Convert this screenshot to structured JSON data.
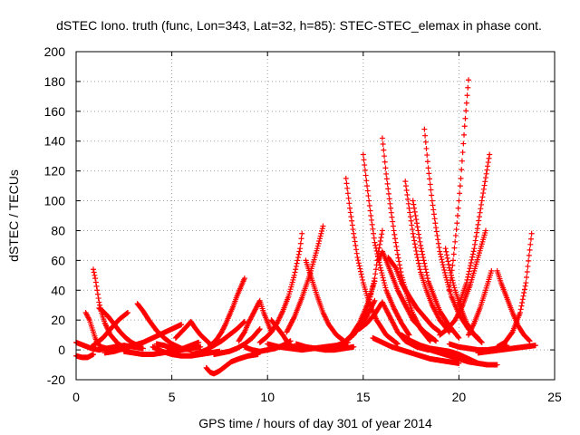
{
  "chart_data": {
    "type": "scatter",
    "title": "dSTEC Iono. truth (func, Lon=343, Lat=32, h=85): STEC-STEC_elemax in phase cont.",
    "xlabel": "GPS time / hours of day 301 of year 2014",
    "ylabel": "dSTEC  / TECUs",
    "xlim": [
      0,
      25
    ],
    "ylim": [
      -20,
      200
    ],
    "xticks": [
      0,
      5,
      10,
      15,
      20,
      25
    ],
    "yticks": [
      -20,
      0,
      20,
      40,
      60,
      80,
      100,
      120,
      140,
      160,
      180,
      200
    ],
    "grid": true,
    "marker": "+",
    "color": "#ff0000",
    "series": [
      {
        "x": [
          0.0,
          0.4,
          0.8,
          1.2,
          1.6,
          2.0,
          2.5,
          3.0,
          3.5
        ],
        "y": [
          5,
          3,
          1,
          0,
          1,
          2,
          3,
          2,
          1
        ]
      },
      {
        "x": [
          0.0,
          0.3,
          0.6,
          0.9
        ],
        "y": [
          -4,
          -5,
          -5,
          -3
        ]
      },
      {
        "x": [
          0.5,
          0.7,
          0.9,
          1.0,
          1.1,
          1.3,
          1.6,
          2.0,
          2.4,
          2.6
        ],
        "y": [
          25,
          20,
          12,
          8,
          5,
          2,
          1,
          0,
          1,
          2
        ]
      },
      {
        "x": [
          0.9,
          1.0,
          1.1,
          1.2,
          1.3,
          1.5,
          1.8,
          2.2,
          2.6
        ],
        "y": [
          54,
          48,
          40,
          32,
          26,
          18,
          10,
          4,
          1
        ]
      },
      {
        "x": [
          1.2,
          1.4,
          1.7,
          2.0,
          2.3,
          2.6,
          2.9,
          3.2
        ],
        "y": [
          28,
          26,
          22,
          17,
          12,
          8,
          5,
          3
        ]
      },
      {
        "x": [
          0.8,
          1.0,
          1.2,
          1.4,
          1.6,
          1.8,
          2.0,
          2.3,
          2.7
        ],
        "y": [
          2,
          4,
          6,
          8,
          11,
          14,
          17,
          21,
          25
        ]
      },
      {
        "x": [
          1.5,
          2.0,
          2.5,
          3.0,
          3.5,
          4.0,
          4.5,
          5.0,
          5.5
        ],
        "y": [
          -2,
          -1,
          1,
          3,
          5,
          8,
          11,
          14,
          17
        ]
      },
      {
        "x": [
          3.2,
          3.5,
          3.8,
          4.2,
          4.6,
          5.0,
          5.5,
          6.0
        ],
        "y": [
          31,
          26,
          20,
          13,
          8,
          4,
          1,
          0
        ]
      },
      {
        "x": [
          2.5,
          3.0,
          3.5,
          4.0,
          4.5,
          5.0,
          5.5,
          6.0,
          6.5
        ],
        "y": [
          -1,
          -2,
          -3,
          -3,
          -2,
          -1,
          0,
          1,
          2
        ]
      },
      {
        "x": [
          4.2,
          4.6,
          5.0,
          5.3,
          5.6,
          6.0,
          6.4
        ],
        "y": [
          4,
          3,
          1,
          0,
          1,
          3,
          5
        ]
      },
      {
        "x": [
          5.2,
          5.5,
          5.8,
          6.0,
          6.2,
          6.5,
          7.0
        ],
        "y": [
          8,
          12,
          16,
          19,
          15,
          10,
          4
        ]
      },
      {
        "x": [
          4.0,
          4.5,
          5.0,
          5.5,
          6.0,
          6.5,
          7.0,
          7.5
        ],
        "y": [
          2,
          -1,
          -3,
          -4,
          -4,
          -3,
          -2,
          -1
        ]
      },
      {
        "x": [
          6.0,
          6.4,
          6.8,
          7.2,
          7.6,
          8.0,
          8.4,
          8.8
        ],
        "y": [
          -3,
          -2,
          0,
          3,
          6,
          10,
          14,
          19
        ]
      },
      {
        "x": [
          7.0,
          7.2,
          7.4,
          7.6,
          7.8,
          8.0,
          8.2,
          8.4,
          8.6,
          8.8
        ],
        "y": [
          3,
          5,
          8,
          12,
          17,
          23,
          29,
          36,
          42,
          48
        ]
      },
      {
        "x": [
          6.8,
          7.0,
          7.2,
          7.5,
          7.8,
          8.1,
          8.5,
          9.0,
          9.5
        ],
        "y": [
          -12,
          -15,
          -16,
          -14,
          -11,
          -8,
          -6,
          -4,
          -3
        ]
      },
      {
        "x": [
          7.2,
          7.6,
          8.0,
          8.4,
          8.8,
          9.2,
          9.6
        ],
        "y": [
          -3,
          -2,
          -1,
          1,
          4,
          8,
          14
        ]
      },
      {
        "x": [
          8.5,
          8.8,
          9.0,
          9.2,
          9.4,
          9.6,
          9.8,
          10.2
        ],
        "y": [
          6,
          12,
          18,
          23,
          28,
          33,
          25,
          12
        ]
      },
      {
        "x": [
          8.8,
          9.2,
          9.6,
          10.0,
          10.4,
          10.8,
          11.2
        ],
        "y": [
          2,
          0,
          -1,
          0,
          1,
          3,
          6
        ]
      },
      {
        "x": [
          9.6,
          9.9,
          10.2,
          10.5,
          10.8,
          11.1,
          11.4,
          11.7,
          11.8
        ],
        "y": [
          5,
          8,
          12,
          18,
          26,
          36,
          50,
          68,
          78
        ]
      },
      {
        "x": [
          10.2,
          10.5,
          10.8,
          11.0,
          11.2,
          11.5,
          11.8
        ],
        "y": [
          20,
          15,
          10,
          6,
          3,
          1,
          0
        ]
      },
      {
        "x": [
          10.0,
          10.6,
          11.2,
          11.8,
          12.4,
          13.0,
          13.6,
          14.2
        ],
        "y": [
          4,
          2,
          1,
          0,
          1,
          2,
          3,
          5
        ]
      },
      {
        "x": [
          11.0,
          11.4,
          11.8,
          12.2,
          12.6,
          12.9
        ],
        "y": [
          12,
          22,
          35,
          50,
          68,
          83
        ]
      },
      {
        "x": [
          12.0,
          12.3,
          12.6,
          12.9,
          13.2,
          13.6,
          14.0
        ],
        "y": [
          60,
          48,
          36,
          25,
          17,
          10,
          6
        ]
      },
      {
        "x": [
          11.5,
          12.0,
          12.5,
          13.0,
          13.5,
          14.0,
          14.5
        ],
        "y": [
          4,
          2,
          1,
          0,
          0,
          1,
          2
        ]
      },
      {
        "x": [
          13.0,
          13.5,
          14.0,
          14.4,
          14.8,
          15.2,
          15.6
        ],
        "y": [
          0,
          2,
          5,
          9,
          15,
          23,
          33
        ]
      },
      {
        "x": [
          14.1,
          14.3,
          14.5,
          14.7,
          15.0,
          15.3,
          15.7,
          16.2,
          16.8
        ],
        "y": [
          115,
          95,
          78,
          62,
          45,
          32,
          20,
          10,
          4
        ]
      },
      {
        "x": [
          13.5,
          14.0,
          14.4,
          14.8,
          15.2,
          15.6
        ],
        "y": [
          2,
          5,
          10,
          18,
          30,
          46
        ]
      },
      {
        "x": [
          14.5,
          15.0,
          15.3,
          15.6,
          15.8,
          16.0
        ],
        "y": [
          10,
          20,
          32,
          48,
          66,
          80
        ]
      },
      {
        "x": [
          15.0,
          15.2,
          15.4,
          15.6,
          15.9,
          16.2,
          16.6,
          17.0,
          17.4
        ],
        "y": [
          131,
          110,
          90,
          72,
          55,
          40,
          28,
          18,
          10
        ]
      },
      {
        "x": [
          14.8,
          15.2,
          15.6,
          16.0,
          16.4,
          16.8,
          17.2,
          17.8,
          18.4
        ],
        "y": [
          14,
          18,
          24,
          32,
          22,
          12,
          6,
          2,
          0
        ]
      },
      {
        "x": [
          16.0,
          16.2,
          16.4,
          16.6,
          16.8,
          17.0,
          17.3,
          17.6,
          18.0,
          18.5
        ],
        "y": [
          142,
          118,
          98,
          80,
          64,
          50,
          36,
          24,
          14,
          6
        ]
      },
      {
        "x": [
          15.8,
          16.0,
          16.2,
          16.5,
          16.8,
          17.2,
          17.6,
          18.2,
          18.8
        ],
        "y": [
          60,
          66,
          60,
          50,
          40,
          30,
          20,
          12,
          6
        ]
      },
      {
        "x": [
          15.5,
          16.0,
          16.5,
          17.0,
          17.5,
          18.0,
          18.5,
          19.0,
          19.5,
          20.0
        ],
        "y": [
          8,
          5,
          2,
          0,
          -2,
          -4,
          -6,
          -7,
          -8,
          -9
        ]
      },
      {
        "x": [
          16.3,
          16.7,
          17.0,
          17.4,
          17.8,
          18.2,
          18.6,
          19.0
        ],
        "y": [
          62,
          55,
          45,
          36,
          28,
          22,
          16,
          12
        ]
      },
      {
        "x": [
          17.2,
          17.4,
          17.6,
          17.8,
          18.0,
          18.3,
          18.6,
          19.0,
          19.5
        ],
        "y": [
          113,
          95,
          78,
          64,
          52,
          40,
          30,
          20,
          12
        ]
      },
      {
        "x": [
          17.6,
          17.8,
          18.0,
          18.2,
          18.4,
          18.7,
          19.0,
          19.5,
          20.0
        ],
        "y": [
          100,
          85,
          70,
          58,
          46,
          36,
          26,
          16,
          8
        ]
      },
      {
        "x": [
          18.2,
          18.4,
          18.6,
          18.8,
          19.0,
          19.3,
          19.6,
          20.0,
          20.5,
          21.0
        ],
        "y": [
          148,
          122,
          100,
          82,
          66,
          50,
          36,
          24,
          14,
          8
        ]
      },
      {
        "x": [
          17.0,
          17.5,
          18.0,
          18.5,
          19.0,
          19.5,
          20.0,
          20.5,
          21.0
        ],
        "y": [
          10,
          6,
          3,
          1,
          0,
          -1,
          -3,
          -6,
          -9
        ]
      },
      {
        "x": [
          18.0,
          18.5,
          19.0,
          19.5,
          20.0,
          20.5,
          21.0,
          21.5,
          22.0
        ],
        "y": [
          2,
          0,
          -2,
          -4,
          -6,
          -8,
          -9,
          -10,
          -10
        ]
      },
      {
        "x": [
          19.3,
          19.5,
          19.8,
          20.1,
          20.4,
          20.8,
          21.2
        ],
        "y": [
          68,
          55,
          40,
          28,
          18,
          10,
          5
        ]
      },
      {
        "x": [
          19.5,
          19.7,
          19.9,
          20.1,
          20.3,
          20.5
        ],
        "y": [
          40,
          60,
          85,
          115,
          150,
          181
        ]
      },
      {
        "x": [
          19.0,
          19.4,
          19.8,
          20.2,
          20.6,
          21.0,
          21.4
        ],
        "y": [
          10,
          14,
          20,
          30,
          44,
          62,
          80
        ]
      },
      {
        "x": [
          20.0,
          20.4,
          20.8,
          21.2,
          21.6
        ],
        "y": [
          30,
          45,
          68,
          100,
          131
        ]
      },
      {
        "x": [
          19.5,
          20.0,
          20.5,
          21.0,
          21.5,
          22.0,
          22.5
        ],
        "y": [
          4,
          2,
          1,
          0,
          0,
          1,
          3
        ]
      },
      {
        "x": [
          20.5,
          20.8,
          21.1,
          21.4,
          21.7
        ],
        "y": [
          10,
          18,
          28,
          40,
          53
        ]
      },
      {
        "x": [
          22.0,
          22.2,
          22.5,
          22.8,
          23.1,
          23.4,
          23.7
        ],
        "y": [
          53,
          45,
          35,
          25,
          16,
          10,
          6
        ]
      },
      {
        "x": [
          22.0,
          22.4,
          22.8,
          23.2,
          23.5,
          23.8
        ],
        "y": [
          2,
          5,
          12,
          25,
          45,
          78
        ]
      },
      {
        "x": [
          21.0,
          21.6,
          22.2,
          22.8,
          23.4,
          24.0
        ],
        "y": [
          -2,
          -1,
          0,
          1,
          2,
          3
        ]
      }
    ]
  }
}
